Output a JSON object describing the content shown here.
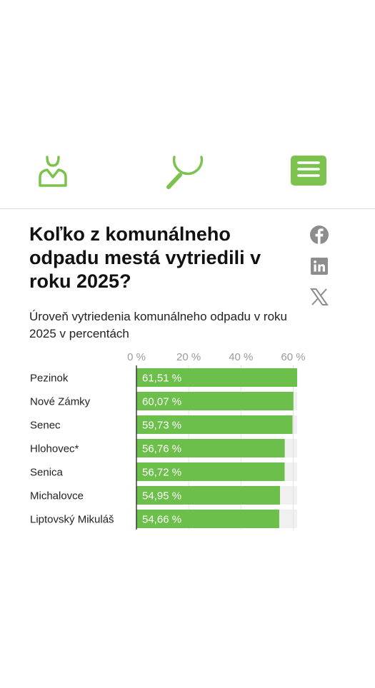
{
  "header": {
    "icons": [
      "user-icon",
      "search-icon",
      "menu-icon"
    ],
    "accent_color": "#7cc24f"
  },
  "article": {
    "title": "Koľko z komunálneho odpadu mestá vytriedili v roku 2025?"
  },
  "share": [
    "facebook-icon",
    "linkedin-icon",
    "x-icon"
  ],
  "chart_data": {
    "type": "bar",
    "orientation": "horizontal",
    "subtitle": "Úroveň vytriedenia komunálneho odpadu v roku 2025 v percentách",
    "categories": [
      "Pezinok",
      "Nové Zámky",
      "Senec",
      "Hlohovec*",
      "Senica",
      "Michalovce",
      "Liptovský Mikuláš"
    ],
    "values": [
      61.51,
      60.07,
      59.73,
      56.76,
      56.72,
      54.95,
      54.66
    ],
    "value_labels": [
      "61,51 %",
      "60,07 %",
      "59,73 %",
      "56,76 %",
      "56,72 %",
      "54,95 %",
      "54,66 %"
    ],
    "x_ticks": [
      0,
      20,
      40,
      60
    ],
    "x_tick_labels": [
      "0 %",
      "20 %",
      "40 %",
      "60 %"
    ],
    "xlim": [
      0,
      61.51
    ],
    "grid": true,
    "bar_color": "#6cbf4a",
    "track_color": "#f0f0f0"
  }
}
